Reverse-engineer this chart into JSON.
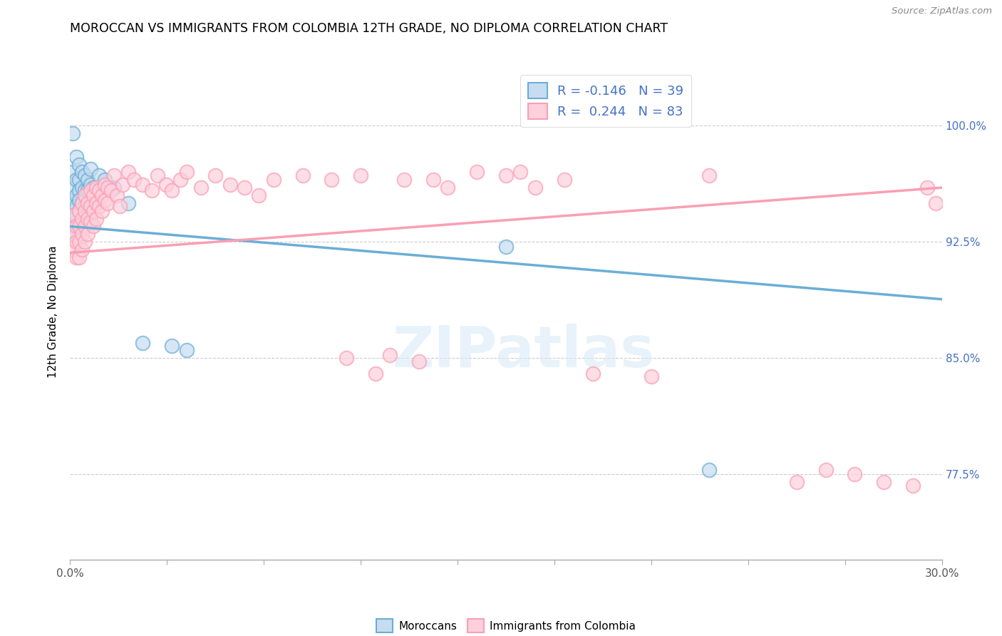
{
  "title": "MOROCCAN VS IMMIGRANTS FROM COLOMBIA 12TH GRADE, NO DIPLOMA CORRELATION CHART",
  "source": "Source: ZipAtlas.com",
  "ylabel": "12th Grade, No Diploma",
  "yticks": [
    "77.5%",
    "85.0%",
    "92.5%",
    "100.0%"
  ],
  "ytick_vals": [
    0.775,
    0.85,
    0.925,
    1.0
  ],
  "xlim": [
    0.0,
    0.3
  ],
  "ylim": [
    0.72,
    1.04
  ],
  "legend_label1": "R = -0.146   N = 39",
  "legend_label2": "R =  0.244   N = 83",
  "watermark": "ZIPatlas",
  "blue_color": "#6baed6",
  "pink_color": "#fa9fb5",
  "blue_face": "#c6dcf0",
  "pink_face": "#fdd0dc",
  "blue_scatter": [
    [
      0.001,
      0.995
    ],
    [
      0.001,
      0.97
    ],
    [
      0.001,
      0.96
    ],
    [
      0.001,
      0.95
    ],
    [
      0.001,
      0.945
    ],
    [
      0.001,
      0.94
    ],
    [
      0.001,
      0.935
    ],
    [
      0.001,
      0.93
    ],
    [
      0.002,
      0.98
    ],
    [
      0.002,
      0.965
    ],
    [
      0.002,
      0.955
    ],
    [
      0.002,
      0.948
    ],
    [
      0.002,
      0.942
    ],
    [
      0.003,
      0.975
    ],
    [
      0.003,
      0.965
    ],
    [
      0.003,
      0.958
    ],
    [
      0.003,
      0.952
    ],
    [
      0.003,
      0.945
    ],
    [
      0.004,
      0.97
    ],
    [
      0.004,
      0.96
    ],
    [
      0.004,
      0.95
    ],
    [
      0.005,
      0.968
    ],
    [
      0.005,
      0.958
    ],
    [
      0.005,
      0.948
    ],
    [
      0.006,
      0.965
    ],
    [
      0.006,
      0.958
    ],
    [
      0.007,
      0.972
    ],
    [
      0.007,
      0.962
    ],
    [
      0.008,
      0.96
    ],
    [
      0.009,
      0.958
    ],
    [
      0.01,
      0.968
    ],
    [
      0.012,
      0.965
    ],
    [
      0.015,
      0.96
    ],
    [
      0.02,
      0.95
    ],
    [
      0.025,
      0.86
    ],
    [
      0.035,
      0.858
    ],
    [
      0.04,
      0.855
    ],
    [
      0.15,
      0.922
    ],
    [
      0.22,
      0.778
    ]
  ],
  "pink_scatter": [
    [
      0.001,
      0.93
    ],
    [
      0.001,
      0.942
    ],
    [
      0.001,
      0.92
    ],
    [
      0.002,
      0.935
    ],
    [
      0.002,
      0.925
    ],
    [
      0.002,
      0.915
    ],
    [
      0.003,
      0.945
    ],
    [
      0.003,
      0.935
    ],
    [
      0.003,
      0.925
    ],
    [
      0.003,
      0.915
    ],
    [
      0.004,
      0.95
    ],
    [
      0.004,
      0.94
    ],
    [
      0.004,
      0.93
    ],
    [
      0.004,
      0.92
    ],
    [
      0.005,
      0.955
    ],
    [
      0.005,
      0.945
    ],
    [
      0.005,
      0.935
    ],
    [
      0.005,
      0.925
    ],
    [
      0.006,
      0.95
    ],
    [
      0.006,
      0.94
    ],
    [
      0.006,
      0.93
    ],
    [
      0.007,
      0.958
    ],
    [
      0.007,
      0.948
    ],
    [
      0.007,
      0.938
    ],
    [
      0.008,
      0.955
    ],
    [
      0.008,
      0.945
    ],
    [
      0.008,
      0.935
    ],
    [
      0.009,
      0.96
    ],
    [
      0.009,
      0.95
    ],
    [
      0.009,
      0.94
    ],
    [
      0.01,
      0.958
    ],
    [
      0.01,
      0.948
    ],
    [
      0.011,
      0.955
    ],
    [
      0.011,
      0.945
    ],
    [
      0.012,
      0.962
    ],
    [
      0.012,
      0.952
    ],
    [
      0.013,
      0.96
    ],
    [
      0.013,
      0.95
    ],
    [
      0.014,
      0.958
    ],
    [
      0.015,
      0.968
    ],
    [
      0.016,
      0.955
    ],
    [
      0.017,
      0.948
    ],
    [
      0.018,
      0.962
    ],
    [
      0.02,
      0.97
    ],
    [
      0.022,
      0.965
    ],
    [
      0.025,
      0.962
    ],
    [
      0.028,
      0.958
    ],
    [
      0.03,
      0.968
    ],
    [
      0.033,
      0.962
    ],
    [
      0.035,
      0.958
    ],
    [
      0.038,
      0.965
    ],
    [
      0.04,
      0.97
    ],
    [
      0.045,
      0.96
    ],
    [
      0.05,
      0.968
    ],
    [
      0.055,
      0.962
    ],
    [
      0.06,
      0.96
    ],
    [
      0.065,
      0.955
    ],
    [
      0.07,
      0.965
    ],
    [
      0.08,
      0.968
    ],
    [
      0.09,
      0.965
    ],
    [
      0.095,
      0.85
    ],
    [
      0.1,
      0.968
    ],
    [
      0.105,
      0.84
    ],
    [
      0.11,
      0.852
    ],
    [
      0.115,
      0.965
    ],
    [
      0.12,
      0.848
    ],
    [
      0.125,
      0.965
    ],
    [
      0.13,
      0.96
    ],
    [
      0.14,
      0.97
    ],
    [
      0.15,
      0.968
    ],
    [
      0.155,
      0.97
    ],
    [
      0.16,
      0.96
    ],
    [
      0.17,
      0.965
    ],
    [
      0.18,
      0.84
    ],
    [
      0.2,
      0.838
    ],
    [
      0.22,
      0.968
    ],
    [
      0.25,
      0.77
    ],
    [
      0.26,
      0.778
    ],
    [
      0.27,
      0.775
    ],
    [
      0.28,
      0.77
    ],
    [
      0.29,
      0.768
    ],
    [
      0.295,
      0.96
    ],
    [
      0.298,
      0.95
    ]
  ],
  "blue_line_x": [
    0.0,
    0.3
  ],
  "blue_line_y": [
    0.935,
    0.888
  ],
  "pink_line_x": [
    0.0,
    0.3
  ],
  "pink_line_y": [
    0.918,
    0.96
  ]
}
